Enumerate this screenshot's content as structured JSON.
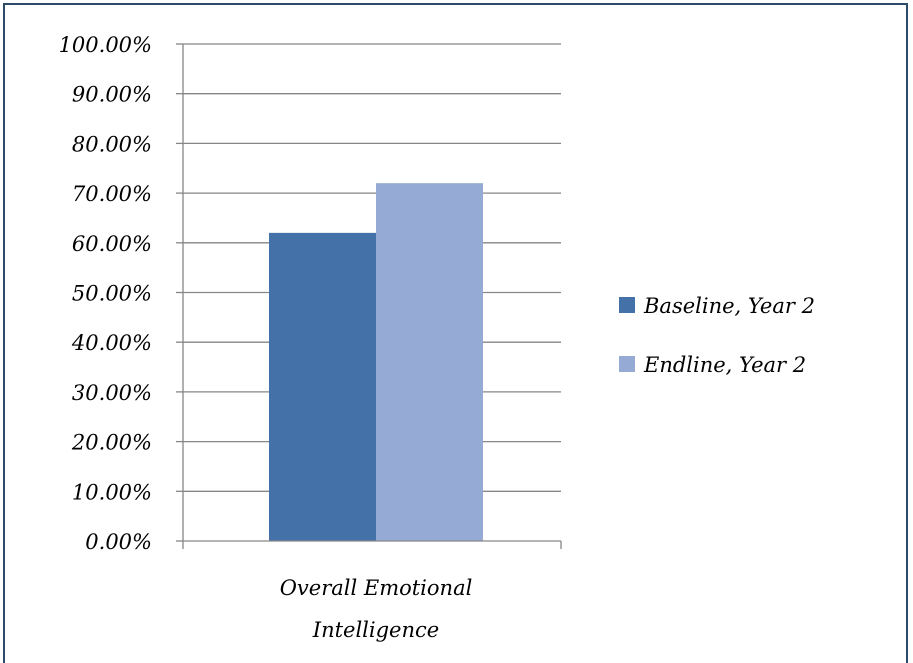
{
  "chart_data": {
    "type": "bar",
    "categories": [
      "Overall Emotional Intelligence"
    ],
    "category_lines": [
      [
        "Overall Emotional",
        "Intelligence"
      ]
    ],
    "series": [
      {
        "name": "Baseline, Year 2",
        "values": [
          62.0
        ],
        "color": "#4472a8"
      },
      {
        "name": "Endline, Year 2",
        "values": [
          72.0
        ],
        "color": "#95aad4"
      }
    ],
    "ylim": [
      0,
      100
    ],
    "yticks": [
      0,
      10,
      20,
      30,
      40,
      50,
      60,
      70,
      80,
      90,
      100
    ],
    "ytick_labels": [
      "0.00%",
      "10.00%",
      "20.00%",
      "30.00%",
      "40.00%",
      "50.00%",
      "60.00%",
      "70.00%",
      "80.00%",
      "90.00%",
      "100.00%"
    ],
    "grid": true,
    "legend_position": "right",
    "title": "",
    "xlabel": "",
    "ylabel": ""
  },
  "colors": {
    "frame_border": "#2e4a6b",
    "gridline": "#868686",
    "axis": "#868686"
  }
}
